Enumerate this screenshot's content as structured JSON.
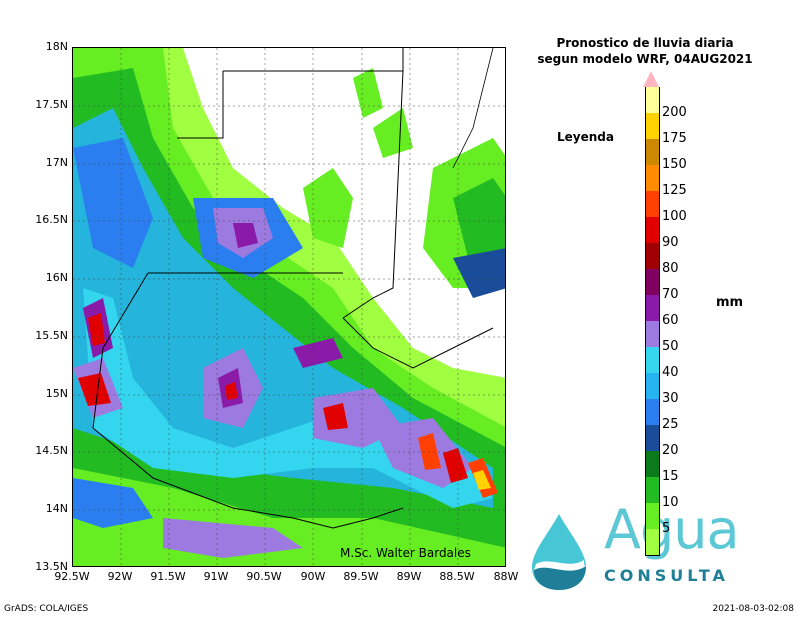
{
  "title": {
    "line1": "Pronostico de lluvia diaria",
    "line2": "segun modelo WRF,  04AUG2021"
  },
  "legend": {
    "label": "Leyenda",
    "unit": "mm",
    "levels": [
      "200",
      "175",
      "150",
      "125",
      "100",
      "90",
      "80",
      "70",
      "60",
      "50",
      "40",
      "30",
      "25",
      "20",
      "15",
      "10",
      "5"
    ],
    "colors": [
      "#ffff99",
      "#ffd200",
      "#cc8800",
      "#ff8c00",
      "#ff4000",
      "#e00000",
      "#a00000",
      "#800060",
      "#8a1aa8",
      "#9d7ae0",
      "#33d6ee",
      "#26b4f0",
      "#2a7ef0",
      "#1a4d99",
      "#0a7a1a",
      "#22bb22",
      "#66ee22",
      "#a0ff40"
    ]
  },
  "axes": {
    "y_ticks": [
      "18N",
      "17.5N",
      "17N",
      "16.5N",
      "16N",
      "15.5N",
      "15N",
      "14.5N",
      "14N",
      "13.5N"
    ],
    "x_ticks": [
      "92.5W",
      "92W",
      "91.5W",
      "91W",
      "90.5W",
      "90W",
      "89.5W",
      "89W",
      "88.5W",
      "88W"
    ]
  },
  "credit": "M.Sc. Walter Bardales",
  "logo": {
    "word": "Agua",
    "subword": "CONSULTA"
  },
  "footer": {
    "left": "GrADS: COLA/IGES",
    "right": "2021-08-03-02:08"
  }
}
